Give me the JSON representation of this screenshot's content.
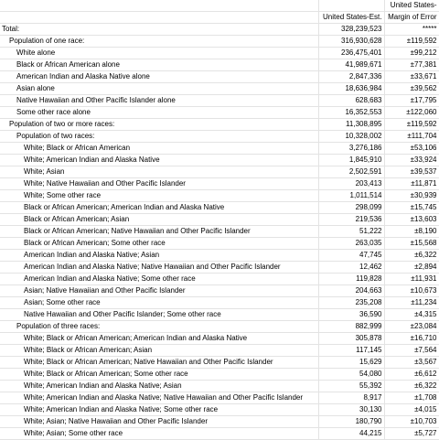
{
  "header": {
    "top_row": [
      "",
      "",
      "United States-"
    ],
    "bottom_row": [
      "",
      "United States-Est.",
      "Margin of Error"
    ]
  },
  "rows": [
    {
      "label": "Total:",
      "indent": 0,
      "estimate": "328,239,523",
      "moe": "*****"
    },
    {
      "label": "Population of one race:",
      "indent": 1,
      "estimate": "316,930,628",
      "moe": "±119,592"
    },
    {
      "label": "White alone",
      "indent": 2,
      "estimate": "236,475,401",
      "moe": "±99,212"
    },
    {
      "label": "Black or African American alone",
      "indent": 2,
      "estimate": "41,989,671",
      "moe": "±77,381"
    },
    {
      "label": "American Indian and Alaska Native alone",
      "indent": 2,
      "estimate": "2,847,336",
      "moe": "±33,671"
    },
    {
      "label": "Asian alone",
      "indent": 2,
      "estimate": "18,636,984",
      "moe": "±39,562"
    },
    {
      "label": "Native Hawaiian and Other Pacific Islander alone",
      "indent": 2,
      "estimate": "628,683",
      "moe": "±17,795"
    },
    {
      "label": "Some other race alone",
      "indent": 2,
      "estimate": "16,352,553",
      "moe": "±122,060"
    },
    {
      "label": "Population of two or more races:",
      "indent": 1,
      "estimate": "11,308,895",
      "moe": "±119,592"
    },
    {
      "label": "Population of two races:",
      "indent": 2,
      "estimate": "10,328,002",
      "moe": "±111,704"
    },
    {
      "label": "White; Black or African American",
      "indent": 3,
      "estimate": "3,276,186",
      "moe": "±53,106"
    },
    {
      "label": "White; American Indian and Alaska Native",
      "indent": 3,
      "estimate": "1,845,910",
      "moe": "±33,924"
    },
    {
      "label": "White; Asian",
      "indent": 3,
      "estimate": "2,502,591",
      "moe": "±39,537"
    },
    {
      "label": "White; Native Hawaiian and Other Pacific Islander",
      "indent": 3,
      "estimate": "203,413",
      "moe": "±11,871"
    },
    {
      "label": "White; Some other race",
      "indent": 3,
      "estimate": "1,011,514",
      "moe": "±30,939"
    },
    {
      "label": "Black or African American; American Indian and Alaska Native",
      "indent": 3,
      "estimate": "298,099",
      "moe": "±15,745"
    },
    {
      "label": "Black or African American; Asian",
      "indent": 3,
      "estimate": "219,536",
      "moe": "±13,603"
    },
    {
      "label": "Black or African American; Native Hawaiian and Other Pacific Islander",
      "indent": 3,
      "estimate": "51,222",
      "moe": "±8,190"
    },
    {
      "label": "Black or African American; Some other race",
      "indent": 3,
      "estimate": "263,035",
      "moe": "±15,568"
    },
    {
      "label": "American Indian and Alaska Native; Asian",
      "indent": 3,
      "estimate": "47,745",
      "moe": "±6,322"
    },
    {
      "label": "American Indian and Alaska Native; Native Hawaiian and Other Pacific Islander",
      "indent": 3,
      "estimate": "12,462",
      "moe": "±2,894"
    },
    {
      "label": "American Indian and Alaska Native; Some other race",
      "indent": 3,
      "estimate": "119,828",
      "moe": "±11,931"
    },
    {
      "label": "Asian; Native Hawaiian and Other Pacific Islander",
      "indent": 3,
      "estimate": "204,663",
      "moe": "±10,673"
    },
    {
      "label": "Asian; Some other race",
      "indent": 3,
      "estimate": "235,208",
      "moe": "±11,234"
    },
    {
      "label": "Native Hawaiian and Other Pacific Islander; Some other race",
      "indent": 3,
      "estimate": "36,590",
      "moe": "±4,315"
    },
    {
      "label": "Population of three races:",
      "indent": 2,
      "estimate": "882,999",
      "moe": "±23,084"
    },
    {
      "label": "White; Black or African American; American Indian and Alaska Native",
      "indent": 3,
      "estimate": "305,878",
      "moe": "±16,710"
    },
    {
      "label": "White; Black or African American; Asian",
      "indent": 3,
      "estimate": "117,145",
      "moe": "±7,564"
    },
    {
      "label": "White; Black or African American; Native Hawaiian and Other Pacific Islander",
      "indent": 3,
      "estimate": "15,629",
      "moe": "±3,567"
    },
    {
      "label": "White; Black or African American; Some other race",
      "indent": 3,
      "estimate": "54,080",
      "moe": "±6,612"
    },
    {
      "label": "White; American Indian and Alaska Native; Asian",
      "indent": 3,
      "estimate": "55,392",
      "moe": "±6,322"
    },
    {
      "label": "White; American Indian and Alaska Native; Native Hawaiian and Other Pacific Islander",
      "indent": 3,
      "estimate": "8,917",
      "moe": "±1,708"
    },
    {
      "label": "White; American Indian and Alaska Native; Some other race",
      "indent": 3,
      "estimate": "30,130",
      "moe": "±4,015"
    },
    {
      "label": "White; Asian; Native Hawaiian and Other Pacific Islander",
      "indent": 3,
      "estimate": "180,790",
      "moe": "±10,703"
    },
    {
      "label": "White; Asian; Some other race",
      "indent": 3,
      "estimate": "44,215",
      "moe": "±5,727"
    }
  ]
}
